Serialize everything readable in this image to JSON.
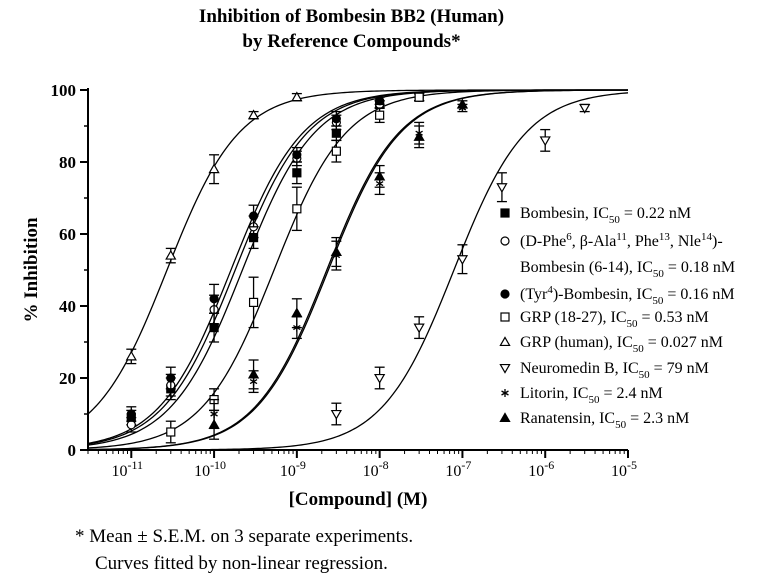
{
  "title_line1": "Inhibition of  Bombesin BB2 (Human)",
  "title_line2": "by Reference Compounds*",
  "footnote_line1": "* Mean ± S.E.M. on 3 separate experiments.",
  "footnote_line2": "Curves fitted by non-linear regression.",
  "chart_data": {
    "type": "scatter",
    "xlabel": "[Compound] (M)",
    "ylabel": "% Inhibition",
    "x_scale": "log",
    "xlim": [
      3e-12,
      1e-05
    ],
    "ylim": [
      0,
      100
    ],
    "x_ticks": [
      "10-11",
      "10-10",
      "10-9",
      "10-8",
      "10-7",
      "10-6",
      "10-5"
    ],
    "y_ticks": [
      0,
      20,
      40,
      60,
      80,
      100
    ],
    "grid": false,
    "legend_position": "right",
    "series": [
      {
        "name": "Bombesin, IC50 = 0.22 nM",
        "legend_parts": [
          "Bombesin, IC",
          "50",
          " = 0.22 nM"
        ],
        "marker": "square-filled",
        "ic50": 2.2e-10,
        "points": [
          [
            1e-11,
            9,
            2
          ],
          [
            3e-11,
            17,
            3
          ],
          [
            1e-10,
            34,
            4
          ],
          [
            3e-10,
            59,
            3
          ],
          [
            1e-09,
            77,
            3
          ],
          [
            3e-09,
            88,
            2
          ],
          [
            1e-08,
            96,
            1
          ],
          [
            3e-08,
            98,
            1
          ]
        ]
      },
      {
        "name": "(D-Phe6, β-Ala11, Phe13, Nle14)-Bombesin (6-14), IC50 = 0.18 nM",
        "legend_parts": [
          "(D-Phe",
          "6",
          ", β-Ala",
          "11",
          ", Phe",
          "13",
          ", Nle",
          "14",
          ")-"
        ],
        "legend_parts_line2": [
          "Bombesin (6-14), IC",
          "50",
          " = 0.18 nM"
        ],
        "marker": "circle-open",
        "ic50": 1.8e-10,
        "points": [
          [
            1e-11,
            7,
            2
          ],
          [
            3e-11,
            18,
            3
          ],
          [
            1e-10,
            39,
            4
          ],
          [
            3e-10,
            62,
            3
          ],
          [
            1e-09,
            81,
            2
          ],
          [
            3e-09,
            91,
            2
          ],
          [
            1e-08,
            96,
            1
          ],
          [
            3e-08,
            98,
            1
          ]
        ]
      },
      {
        "name": "(Tyr4)-Bombesin, IC50 = 0.16 nM",
        "legend_parts": [
          "(Tyr",
          "4",
          ")-Bombesin, IC",
          "50",
          " = 0.16 nM"
        ],
        "marker": "circle-filled",
        "ic50": 1.6e-10,
        "points": [
          [
            1e-11,
            10,
            2
          ],
          [
            3e-11,
            20,
            3
          ],
          [
            1e-10,
            42,
            4
          ],
          [
            3e-10,
            65,
            3
          ],
          [
            1e-09,
            82,
            2
          ],
          [
            3e-09,
            92,
            2
          ],
          [
            1e-08,
            97,
            1
          ],
          [
            3e-08,
            98,
            1
          ]
        ]
      },
      {
        "name": "GRP (18-27), IC50 = 0.53 nM",
        "legend_parts": [
          "GRP (18-27), IC",
          "50",
          " = 0.53 nM"
        ],
        "marker": "square-open",
        "ic50": 5.3e-10,
        "points": [
          [
            3e-11,
            5,
            3
          ],
          [
            1e-10,
            14,
            3
          ],
          [
            3e-10,
            41,
            7
          ],
          [
            1e-09,
            67,
            6
          ],
          [
            3e-09,
            83,
            3
          ],
          [
            1e-08,
            93,
            2
          ],
          [
            3e-08,
            98,
            1
          ]
        ]
      },
      {
        "name": "GRP (human), IC50 = 0.027 nM",
        "legend_parts": [
          "GRP (human), IC",
          "50",
          " = 0.027 nM"
        ],
        "marker": "triangle-up-open",
        "ic50": 2.7e-11,
        "points": [
          [
            1e-11,
            26,
            2
          ],
          [
            3e-11,
            54,
            2
          ],
          [
            1e-10,
            78,
            4
          ],
          [
            3e-10,
            93,
            1
          ],
          [
            1e-09,
            98,
            1
          ]
        ]
      },
      {
        "name": "Neuromedin B, IC50 = 79 nM",
        "legend_parts": [
          "Neuromedin B, IC",
          "50",
          " = 79 nM"
        ],
        "marker": "triangle-down-open",
        "ic50": 7.9e-08,
        "points": [
          [
            3e-09,
            10,
            3
          ],
          [
            1e-08,
            20,
            3
          ],
          [
            3e-08,
            34,
            3
          ],
          [
            1e-07,
            53,
            4
          ],
          [
            3e-07,
            73,
            4
          ],
          [
            1e-06,
            86,
            3
          ],
          [
            3e-06,
            95,
            1
          ]
        ]
      },
      {
        "name": "Litorin, IC50 = 2.4 nM",
        "legend_parts": [
          "Litorin, IC",
          "50",
          " = 2.4 nM"
        ],
        "marker": "asterisk",
        "ic50": 2.4e-09,
        "points": [
          [
            1e-10,
            10,
            4
          ],
          [
            3e-10,
            19,
            3
          ],
          [
            1e-09,
            34,
            3
          ],
          [
            3e-09,
            54,
            4
          ],
          [
            1e-08,
            74,
            3
          ],
          [
            3e-08,
            88,
            3
          ],
          [
            1e-07,
            95,
            1
          ]
        ]
      },
      {
        "name": "Ranatensin, IC50 = 2.3 nM",
        "legend_parts": [
          "Ranatensin, IC",
          "50",
          " = 2.3 nM"
        ],
        "marker": "triangle-up-filled",
        "ic50": 2.3e-09,
        "points": [
          [
            1e-10,
            7,
            4
          ],
          [
            3e-10,
            21,
            4
          ],
          [
            1e-09,
            38,
            4
          ],
          [
            3e-09,
            55,
            4
          ],
          [
            1e-08,
            76,
            3
          ],
          [
            3e-08,
            87,
            3
          ],
          [
            1e-07,
            96,
            1
          ]
        ]
      }
    ]
  }
}
